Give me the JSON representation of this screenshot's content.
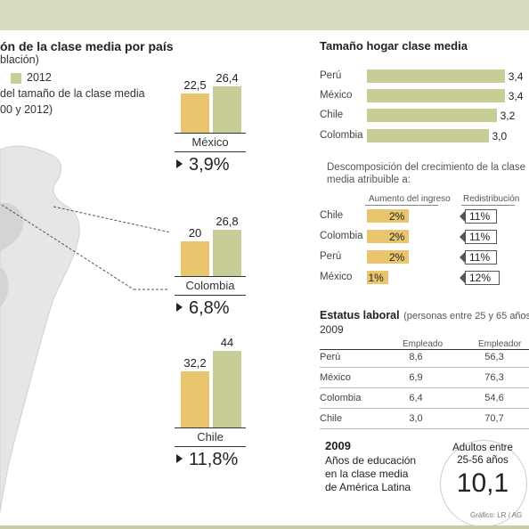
{
  "left_panel": {
    "title": "ón de la clase media por país",
    "subtitle": "blación)",
    "legend_2012": "2012",
    "desc_line1": "del tamaño de la clase media",
    "desc_line2": "00 y 2012)"
  },
  "growth_labels": [
    "3,9%",
    "6,8%",
    "11,8%"
  ],
  "right_panel": {
    "tamano_title": "Tamaño hogar clase media",
    "descomp_line1": "Descomposición del crecimiento de la clase",
    "descomp_line2": "media atribuible a:",
    "col_ingreso": "Aumento del ingreso",
    "col_redistribucion": "Redistribución",
    "estatus_title": "Estatus laboral",
    "estatus_sub": "(personas entre 25 y 65 años",
    "estatus_year": "2009",
    "col_empleado": "Empleado",
    "col_empleador": "Empleador",
    "edu_year": "2009",
    "edu_line1": "Años de educación",
    "edu_line2": "en la clase media",
    "edu_line3": "de América Latina",
    "circle_line1": "Adultos entre",
    "circle_line2": "25-56 años",
    "circle_value": "10,1",
    "source": "Gráfico: LR / AG"
  },
  "colors": {
    "bar_first": "#e9c56e",
    "bar_2012": "#c8cd98",
    "top_band": "#d9dcc0",
    "map": "#e6e6e6"
  },
  "chart_data": [
    {
      "type": "bar",
      "categories": [
        "México",
        "Colombia",
        "Chile"
      ],
      "series": [
        {
          "name": "",
          "values": [
            22.5,
            20,
            32.2
          ],
          "labels": [
            "22,5",
            "20",
            "32,2"
          ]
        },
        {
          "name": "2012",
          "values": [
            26.4,
            26.8,
            44
          ],
          "labels": [
            "26,4",
            "26,8",
            "44"
          ]
        }
      ],
      "growth": [
        "3,9%",
        "6,8%",
        "11,8%"
      ]
    },
    {
      "type": "bar",
      "orientation": "horizontal",
      "title": "Tamaño hogar clase media",
      "categories": [
        "Perú",
        "México",
        "Chile",
        "Colombia"
      ],
      "values": [
        3.4,
        3.4,
        3.2,
        3.0
      ],
      "labels": [
        "3,4",
        "3,4",
        "3,2",
        "3,0"
      ]
    },
    {
      "type": "bar",
      "orientation": "horizontal",
      "categories": [
        "Chile",
        "Colombia",
        "Perú",
        "México"
      ],
      "series": [
        {
          "name": "Aumento del ingreso",
          "values": [
            2,
            2,
            2,
            1
          ],
          "labels": [
            "2%",
            "2%",
            "2%",
            "1%"
          ]
        },
        {
          "name": "Redistribución",
          "values": [
            11,
            11,
            11,
            12
          ],
          "labels": [
            "11%",
            "11%",
            "11%",
            "12%"
          ]
        }
      ]
    },
    {
      "type": "table",
      "title": "Estatus laboral",
      "columns": [
        "Empleado",
        "Empleador"
      ],
      "rows": [
        {
          "country": "Perú",
          "values": [
            "8,6",
            "56,3"
          ]
        },
        {
          "country": "México",
          "values": [
            "6,9",
            "76,3"
          ]
        },
        {
          "country": "Colombia",
          "values": [
            "6,4",
            "54,6"
          ]
        },
        {
          "country": "Chile",
          "values": [
            "3,0",
            "70,7"
          ]
        }
      ]
    }
  ]
}
